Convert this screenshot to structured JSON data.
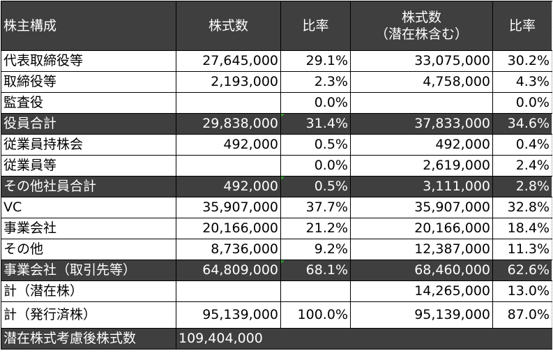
{
  "header": {
    "col0": "株主構成",
    "col1": "株式数",
    "col2": "比率",
    "col3_line1": "株式数",
    "col3_line2": "（潜在株含む）",
    "col4": "比率"
  },
  "rows": [
    {
      "label": "代表取締役等",
      "shares": "27,645,000",
      "ratio": "29.1%",
      "shares_potential": "33,075,000",
      "ratio_potential": "30.2%"
    },
    {
      "label": "取締役等",
      "shares": "2,193,000",
      "ratio": "2.3%",
      "shares_potential": "4,758,000",
      "ratio_potential": "4.3%"
    },
    {
      "label": "監査役",
      "shares": "",
      "ratio": "0.0%",
      "shares_potential": "",
      "ratio_potential": "0.0%"
    },
    {
      "label": "役員合計",
      "shares": "29,838,000",
      "ratio": "31.4%",
      "shares_potential": "37,833,000",
      "ratio_potential": "34.6%"
    },
    {
      "label": "従業員持株会",
      "shares": "492,000",
      "ratio": "0.5%",
      "shares_potential": "492,000",
      "ratio_potential": "0.4%"
    },
    {
      "label": "従業員等",
      "shares": "",
      "ratio": "0.0%",
      "shares_potential": "2,619,000",
      "ratio_potential": "2.4%"
    },
    {
      "label": "その他社員合計",
      "shares": "492,000",
      "ratio": "0.5%",
      "shares_potential": "3,111,000",
      "ratio_potential": "2.8%"
    },
    {
      "label": "VC",
      "shares": "35,907,000",
      "ratio": "37.7%",
      "shares_potential": "35,907,000",
      "ratio_potential": "32.8%"
    },
    {
      "label": "事業会社",
      "shares": "20,166,000",
      "ratio": "21.2%",
      "shares_potential": "20,166,000",
      "ratio_potential": "18.4%"
    },
    {
      "label": "その他",
      "shares": "8,736,000",
      "ratio": "9.2%",
      "shares_potential": "12,387,000",
      "ratio_potential": "11.3%"
    },
    {
      "label": "事業会社（取引先等）",
      "shares": "64,809,000",
      "ratio": "68.1%",
      "shares_potential": "68,460,000",
      "ratio_potential": "62.6%"
    },
    {
      "label": "計（潜在株）",
      "shares": "",
      "ratio": "",
      "shares_potential": "14,265,000",
      "ratio_potential": "13.0%"
    },
    {
      "label": "計（発行済株）",
      "shares": "95,139,000",
      "ratio": "100.0%",
      "shares_potential": "95,139,000",
      "ratio_potential": "87.0%"
    }
  ],
  "total": {
    "label": "潜在株式考慮後株式数",
    "value": "109,404,000"
  }
}
